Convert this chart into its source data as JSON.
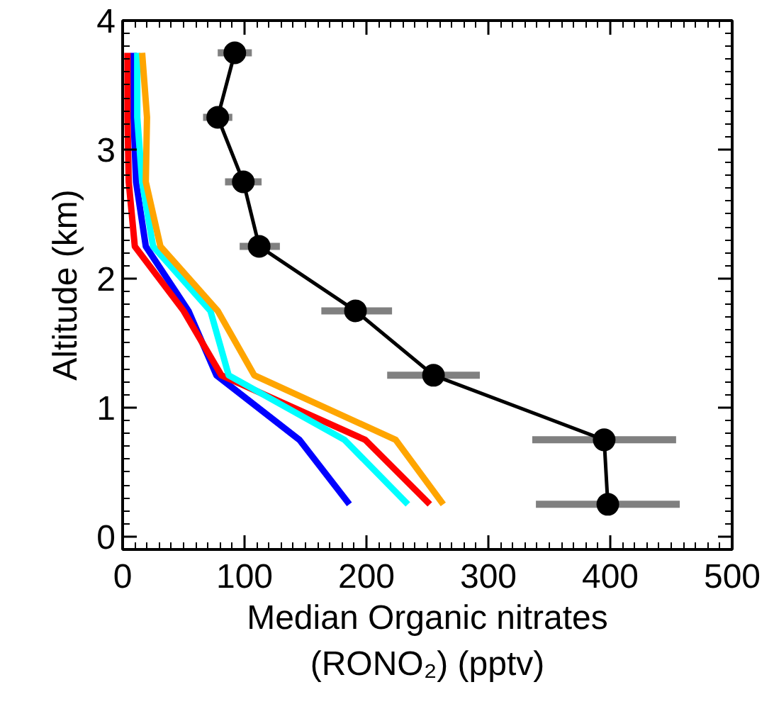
{
  "chart_data": {
    "type": "line",
    "xlabel": "Median Organic nitrates\n(RONO₂) (pptv)",
    "ylabel": "Altitude (km)",
    "xlim": [
      0,
      500
    ],
    "ylim": [
      -0.1,
      4
    ],
    "xticks": [
      0,
      100,
      200,
      300,
      400,
      500
    ],
    "yticks": [
      0,
      1,
      2,
      3,
      4
    ],
    "grid": false,
    "line_style": "solid",
    "series": [
      {
        "color": "#0000ff",
        "x": [
          186,
          145,
          77,
          54,
          19,
          11,
          9,
          9
        ],
        "values": [
          0.25,
          0.75,
          1.25,
          1.75,
          2.25,
          2.75,
          3.25,
          3.75
        ],
        "marker": "none"
      },
      {
        "color": "#ff0000",
        "x": [
          252,
          199,
          81,
          50,
          10,
          5,
          4,
          4
        ],
        "values": [
          0.25,
          0.75,
          1.25,
          1.75,
          2.25,
          2.75,
          3.25,
          3.75
        ],
        "marker": "none"
      },
      {
        "color": "#00ffff",
        "x": [
          234,
          182,
          87,
          72,
          25,
          16,
          12,
          12
        ],
        "values": [
          0.25,
          0.75,
          1.25,
          1.75,
          2.25,
          2.75,
          3.25,
          3.75
        ],
        "marker": "none"
      },
      {
        "color": "#ffa500",
        "x": [
          263,
          224,
          108,
          78,
          31,
          19,
          20,
          16
        ],
        "values": [
          0.25,
          0.75,
          1.25,
          1.75,
          2.25,
          2.75,
          3.25,
          3.75
        ],
        "marker": "none"
      },
      {
        "color": "#000000",
        "x": [
          398,
          395,
          255,
          191,
          112,
          99,
          78,
          92
        ],
        "values": [
          0.25,
          0.75,
          1.25,
          1.75,
          2.25,
          2.75,
          3.25,
          3.75
        ],
        "marker": "circle",
        "xerrors": [
          [
            339,
            457
          ],
          [
            336,
            454
          ],
          [
            217,
            293
          ],
          [
            163,
            221
          ],
          [
            96,
            129
          ],
          [
            84,
            114
          ],
          [
            66,
            90
          ],
          [
            78,
            106
          ]
        ]
      }
    ]
  }
}
